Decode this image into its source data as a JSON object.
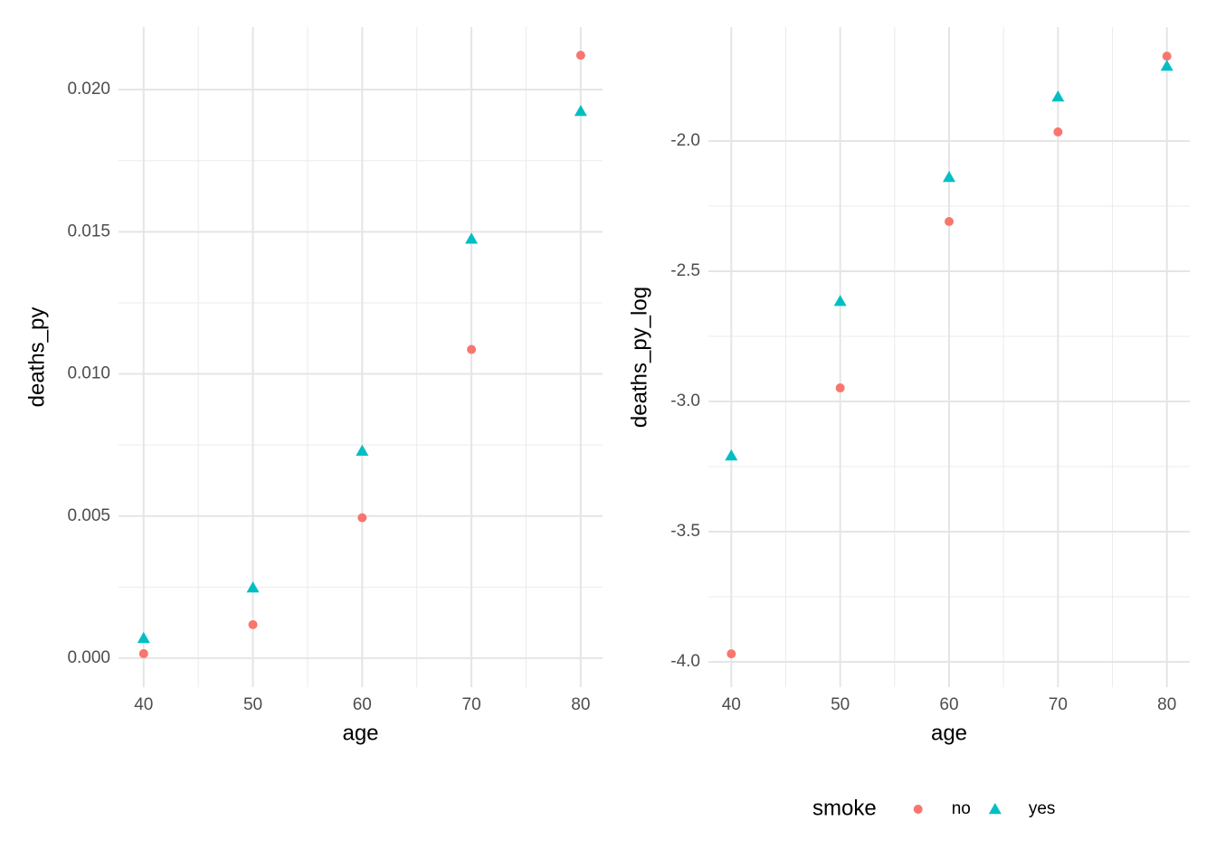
{
  "chart_data": [
    {
      "type": "scatter",
      "xlabel": "age",
      "ylabel": "deaths_py",
      "xlim": [
        37.7,
        82.0
      ],
      "ylim": [
        -0.00102,
        0.0222
      ],
      "xticks": [
        40,
        50,
        60,
        70,
        80
      ],
      "yticks": [
        {
          "value": 0,
          "label": "0.000"
        },
        {
          "value": 0.005,
          "label": "0.005"
        },
        {
          "value": 0.01,
          "label": "0.010"
        },
        {
          "value": 0.015,
          "label": "0.015"
        },
        {
          "value": 0.02,
          "label": "0.020"
        }
      ],
      "grid": true,
      "minor_grid": true,
      "x": [
        40,
        50,
        60,
        70,
        80
      ],
      "series": [
        {
          "color": "#F8766D",
          "marker": "circle",
          "values": [
            0.00016,
            0.00118,
            0.00494,
            0.01086,
            0.02121
          ]
        },
        {
          "color": "#00BFC4",
          "marker": "triangle",
          "values": [
            0.0007,
            0.00248,
            0.00729,
            0.01475,
            0.01924
          ]
        }
      ]
    },
    {
      "type": "scatter",
      "xlabel": "age",
      "ylabel": "deaths_py_log",
      "xlim": [
        37.9,
        82.1
      ],
      "ylim": [
        -4.097,
        -1.5625
      ],
      "xticks": [
        40,
        50,
        60,
        70,
        80
      ],
      "yticks": [
        {
          "value": -4,
          "label": "-4.0"
        },
        {
          "value": -3.5,
          "label": "-3.5"
        },
        {
          "value": -3,
          "label": "-3.0"
        },
        {
          "value": -2.5,
          "label": "-2.5"
        },
        {
          "value": -2,
          "label": "-2.0"
        }
      ],
      "grid": true,
      "minor_grid": true,
      "legend": "bottom",
      "legend_title": "smoke",
      "x": [
        40,
        50,
        60,
        70,
        80
      ],
      "series": [
        {
          "name": "no",
          "color": "#F8766D",
          "marker": "circle",
          "values": [
            -3.969,
            -2.948,
            -2.309,
            -1.965,
            -1.674
          ]
        },
        {
          "name": "yes",
          "color": "#00BFC4",
          "marker": "triangle",
          "values": [
            -3.208,
            -2.615,
            -2.139,
            -1.83,
            -1.712
          ]
        }
      ]
    }
  ]
}
